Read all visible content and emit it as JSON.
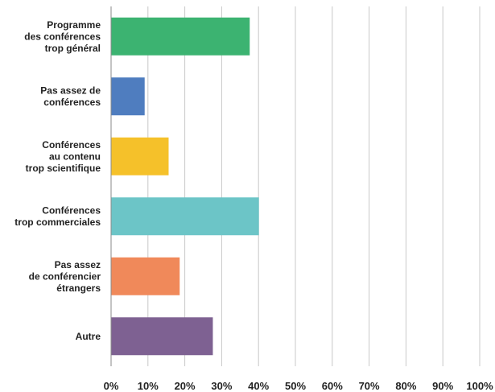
{
  "chart_data": {
    "type": "bar",
    "orientation": "horizontal",
    "categories": [
      [
        "Programme",
        "des conférences",
        "trop général"
      ],
      [
        "Pas assez de",
        "conférences"
      ],
      [
        "Conférences",
        "au contenu",
        "trop scientifique"
      ],
      [
        "Conférences",
        "trop commerciales"
      ],
      [
        "Pas assez",
        "de conférencier",
        "étrangers"
      ],
      [
        "Autre"
      ]
    ],
    "values": [
      37.5,
      9,
      15.5,
      40,
      18.5,
      27.5
    ],
    "colors": [
      "#3cb371",
      "#4f7dbf",
      "#f5c12a",
      "#6cc5c7",
      "#f0895a",
      "#7e6192"
    ],
    "xlim": [
      0,
      100
    ],
    "xticks": [
      "0%",
      "10%",
      "20%",
      "30%",
      "40%",
      "50%",
      "60%",
      "70%",
      "80%",
      "90%",
      "100%"
    ],
    "grid": true,
    "legend": "none"
  }
}
